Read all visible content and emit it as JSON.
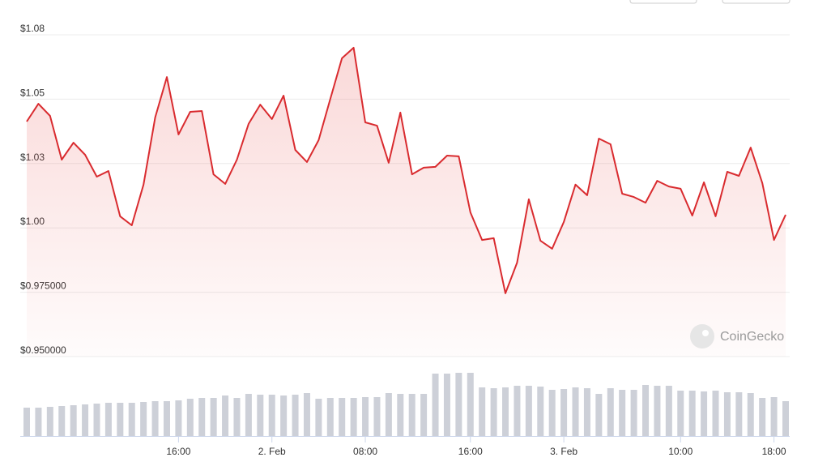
{
  "chart_data": {
    "type": "line",
    "categories": [
      null,
      null,
      null,
      null,
      null,
      null,
      null,
      null,
      null,
      null,
      null,
      null,
      null,
      "16:00",
      null,
      null,
      null,
      null,
      null,
      null,
      null,
      "2. Feb",
      null,
      null,
      null,
      null,
      null,
      null,
      null,
      "08:00",
      null,
      null,
      null,
      null,
      null,
      null,
      null,
      null,
      "16:00",
      null,
      null,
      null,
      null,
      null,
      null,
      null,
      "3. Feb",
      null,
      null,
      null,
      null,
      null,
      null,
      null,
      null,
      null,
      "10:00",
      null,
      null,
      null,
      null,
      null,
      null,
      null,
      "18:00",
      null
    ],
    "values": [
      1.0413,
      1.0482,
      1.0435,
      1.0265,
      1.0331,
      1.0284,
      1.0199,
      1.0221,
      1.0045,
      1.001,
      1.0168,
      1.0429,
      1.0586,
      1.0363,
      1.0451,
      1.0454,
      1.0208,
      1.0171,
      1.0265,
      1.0404,
      1.0479,
      1.0423,
      1.0514,
      1.0303,
      1.0256,
      1.0341,
      1.0501,
      1.0659,
      1.07,
      1.041,
      1.0397,
      1.0253,
      1.0448,
      1.0208,
      1.0234,
      1.0237,
      1.0281,
      1.0278,
      1.006,
      0.9953,
      0.996,
      0.9746,
      0.9865,
      1.0111,
      0.995,
      0.9919,
      1.0023,
      1.0168,
      1.0127,
      1.0347,
      1.0325,
      1.0133,
      1.012,
      1.0098,
      1.0183,
      1.0161,
      1.0152,
      1.0048,
      1.0177,
      1.0045,
      1.0218,
      1.0202,
      1.0312,
      1.0174,
      0.9953,
      1.0051
    ],
    "color": "#d92b2f",
    "ylim": [
      0.95,
      1.075
    ],
    "yticks": [
      {
        "value": 0.95,
        "label": "$0.950000"
      },
      {
        "value": 0.975,
        "label": "$0.975000"
      },
      {
        "value": 1.0,
        "label": "$1.00"
      },
      {
        "value": 1.025,
        "label": "$1.03"
      },
      {
        "value": 1.05,
        "label": "$1.05"
      },
      {
        "value": 1.075,
        "label": "$1.08"
      }
    ],
    "grid": true,
    "volume": {
      "color": "#cdd0d8",
      "values": [
        35,
        35,
        36,
        37,
        38,
        39,
        40,
        41,
        41,
        41,
        42,
        43,
        43,
        44,
        46,
        47,
        47,
        50,
        47,
        52,
        51,
        51,
        50,
        51,
        53,
        46,
        47,
        47,
        47,
        48,
        48,
        53,
        52,
        52,
        52,
        77,
        77,
        78,
        78,
        60,
        59,
        60,
        62,
        62,
        61,
        57,
        58,
        60,
        59,
        52,
        59,
        57,
        57,
        63,
        62,
        62,
        56,
        56,
        55,
        56,
        54,
        54,
        53,
        47,
        48,
        43
      ]
    },
    "watermark": "CoinGecko"
  }
}
